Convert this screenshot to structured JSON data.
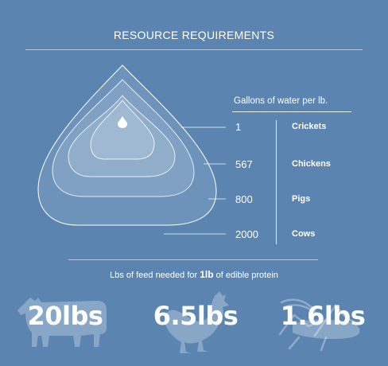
{
  "title": "RESOURCE REQUIREMENTS",
  "water": {
    "header": "Gallons  of water per lb.",
    "rows": [
      {
        "value": "1",
        "animal": "Crickets"
      },
      {
        "value": "567",
        "animal": "Chickens"
      },
      {
        "value": "800",
        "animal": "Pigs"
      },
      {
        "value": "2000",
        "animal": "Cows"
      }
    ],
    "icon": "water-drop-icon"
  },
  "feed": {
    "caption_pre": "Lbs of feed needed for ",
    "caption_bold": "1lb",
    "caption_post": " of edible protein",
    "items": [
      {
        "value": "20lbs",
        "icon": "cow-silhouette-icon"
      },
      {
        "value": "6.5lbs",
        "icon": "chicken-silhouette-icon"
      },
      {
        "value": "1.6lbs",
        "icon": "cricket-silhouette-icon"
      }
    ]
  },
  "colors": {
    "background": "#5b84b1",
    "text": "#ffffff"
  }
}
